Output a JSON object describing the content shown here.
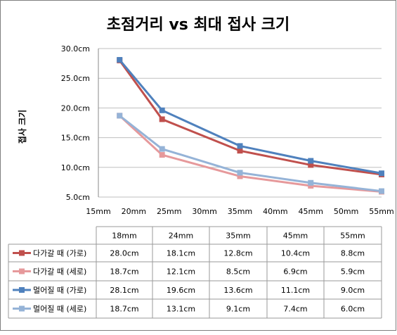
{
  "chart_data": {
    "type": "line",
    "title": "초점거리 vs 최대 접사 크기",
    "ylabel": "접사 크기",
    "xlabel": "",
    "x_axis_ticks": [
      "15mm",
      "20mm",
      "25mm",
      "30mm",
      "35mm",
      "40mm",
      "45mm",
      "50mm",
      "55mm"
    ],
    "y_axis_ticks": [
      "5.0cm",
      "10.0cm",
      "15.0cm",
      "20.0cm",
      "25.0cm",
      "30.0cm"
    ],
    "xlim": [
      15,
      55
    ],
    "ylim": [
      5,
      30
    ],
    "categories": [
      "18mm",
      "24mm",
      "35mm",
      "45mm",
      "55mm"
    ],
    "x": [
      18,
      24,
      35,
      45,
      55
    ],
    "grid": "horizontal",
    "legend": "table-left",
    "series": [
      {
        "name": "다가갈 때 (가로)",
        "color": "#c0504d",
        "values": [
          28.0,
          18.1,
          12.8,
          10.4,
          8.8
        ],
        "labels": [
          "28.0cm",
          "18.1cm",
          "12.8cm",
          "10.4cm",
          "8.8cm"
        ]
      },
      {
        "name": "다가갈 때 (세로)",
        "color": "#e6999b",
        "values": [
          18.7,
          12.1,
          8.5,
          6.9,
          5.9
        ],
        "labels": [
          "18.7cm",
          "12.1cm",
          "8.5cm",
          "6.9cm",
          "5.9cm"
        ]
      },
      {
        "name": "멀어질 때 (가로)",
        "color": "#4f81bd",
        "values": [
          28.1,
          19.6,
          13.6,
          11.1,
          9.0
        ],
        "labels": [
          "28.1cm",
          "19.6cm",
          "13.6cm",
          "11.1cm",
          "9.0cm"
        ]
      },
      {
        "name": "멀어질 때 (세로)",
        "color": "#95b3d7",
        "values": [
          18.7,
          13.1,
          9.1,
          7.4,
          6.0
        ],
        "labels": [
          "18.7cm",
          "13.1cm",
          "9.1cm",
          "7.4cm",
          "6.0cm"
        ]
      }
    ]
  }
}
